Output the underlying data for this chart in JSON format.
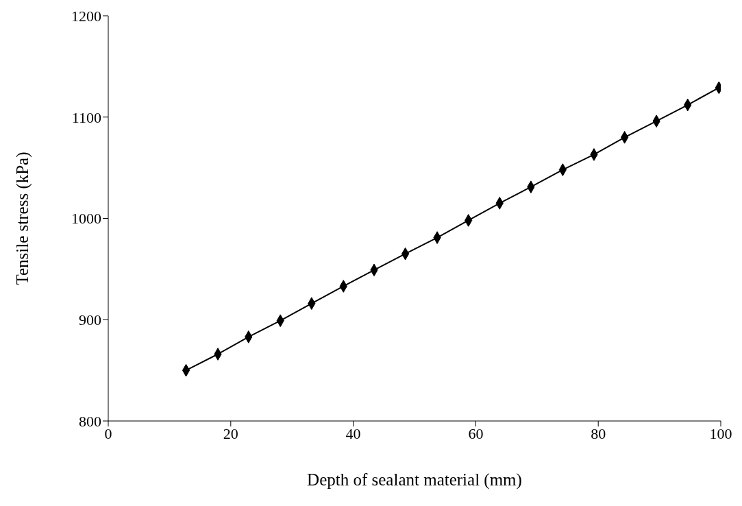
{
  "chart_data": {
    "type": "line",
    "xlabel": "Depth of sealant material (mm)",
    "ylabel": "Tensile stress (kPa)",
    "x": [
      12.7,
      17.9,
      22.9,
      28.1,
      33.2,
      38.4,
      43.4,
      48.5,
      53.7,
      58.8,
      63.9,
      69.0,
      74.2,
      79.3,
      84.3,
      89.5,
      94.6,
      99.7
    ],
    "series": [
      {
        "color": "#000000",
        "values": [
          850,
          866,
          883,
          899,
          916,
          933,
          949,
          965,
          981,
          998,
          1015,
          1031,
          1048,
          1063,
          1080,
          1096,
          1112,
          1129
        ]
      }
    ],
    "xlim": [
      0,
      100
    ],
    "xticks": [
      0,
      20,
      40,
      60,
      80,
      100
    ],
    "ylim": [
      800,
      1200
    ],
    "yticks": [
      800,
      900,
      1000,
      1100,
      1200
    ],
    "grid": false,
    "legend": false,
    "marker": "diamond",
    "line_style": "solid"
  }
}
